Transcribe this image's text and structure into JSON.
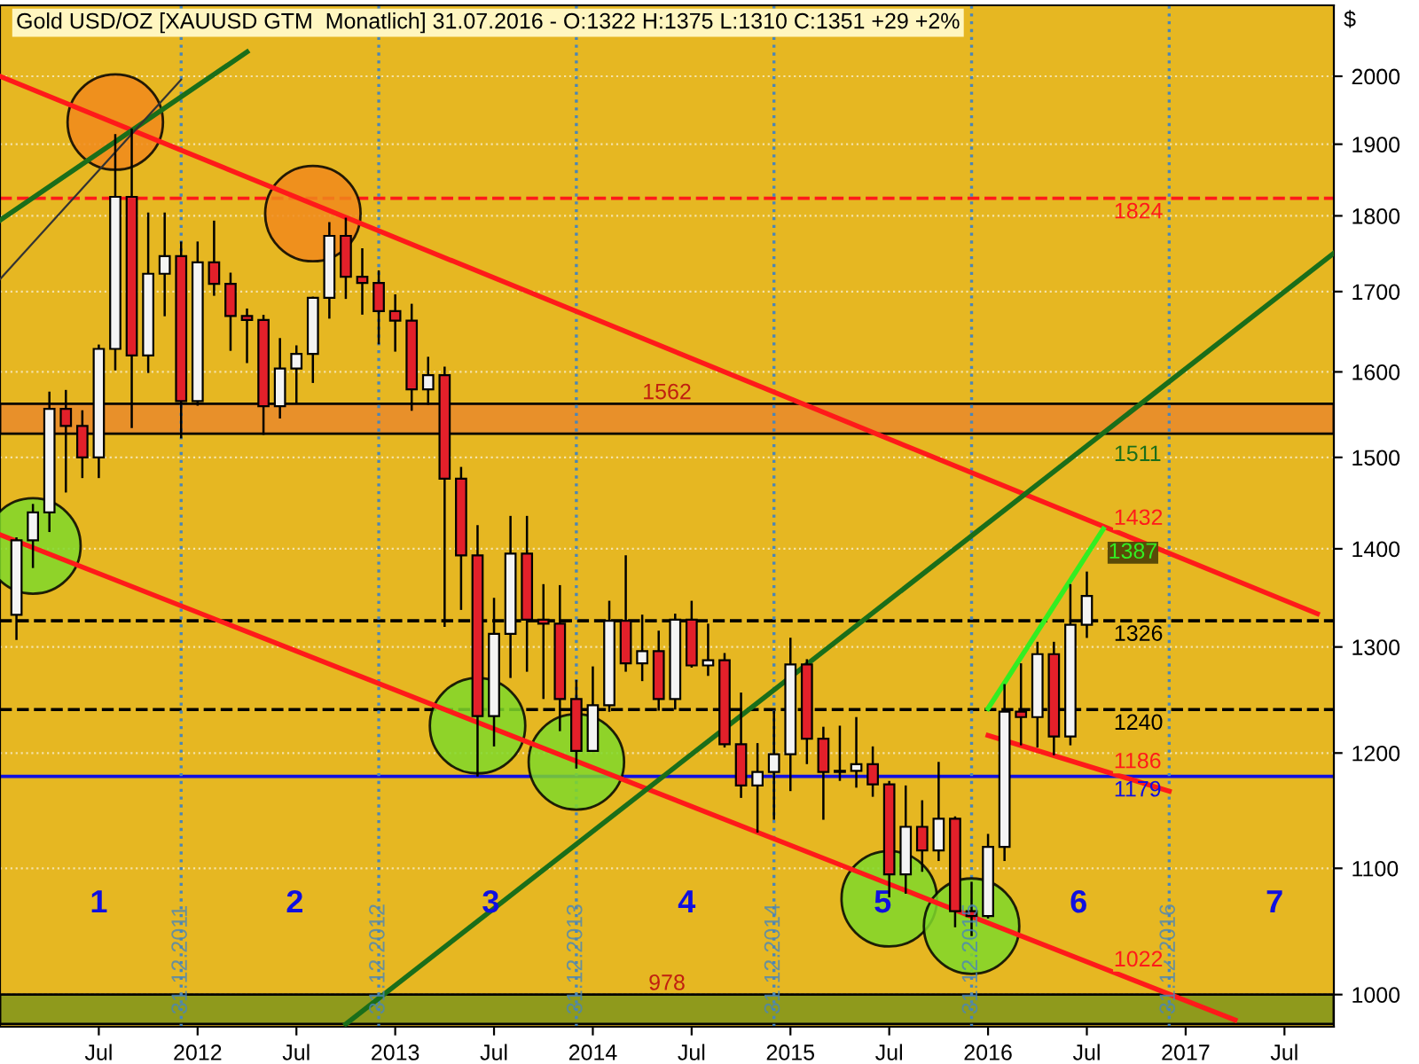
{
  "chart_data": {
    "type": "candlestick",
    "title": "Gold USD/OZ [XAUUSD GTM  Monatlich] 31.07.2016 - O:1322 H:1375 L:1310 C:1351 +29 +2%",
    "ylabel": "$",
    "x": [
      "2011-02",
      "2011-03",
      "2011-04",
      "2011-05",
      "2011-06",
      "2011-07",
      "2011-08",
      "2011-09",
      "2011-10",
      "2011-11",
      "2011-12",
      "2012-01",
      "2012-02",
      "2012-03",
      "2012-04",
      "2012-05",
      "2012-06",
      "2012-07",
      "2012-08",
      "2012-09",
      "2012-10",
      "2012-11",
      "2012-12",
      "2013-01",
      "2013-02",
      "2013-03",
      "2013-04",
      "2013-05",
      "2013-06",
      "2013-07",
      "2013-08",
      "2013-09",
      "2013-10",
      "2013-11",
      "2013-12",
      "2014-01",
      "2014-02",
      "2014-03",
      "2014-04",
      "2014-05",
      "2014-06",
      "2014-07",
      "2014-08",
      "2014-09",
      "2014-10",
      "2014-11",
      "2014-12",
      "2015-01",
      "2015-02",
      "2015-03",
      "2015-04",
      "2015-05",
      "2015-06",
      "2015-07",
      "2015-08",
      "2015-09",
      "2015-10",
      "2015-11",
      "2015-12",
      "2016-01",
      "2016-02",
      "2016-03",
      "2016-04",
      "2016-05",
      "2016-06",
      "2016-07"
    ],
    "ohlc": [
      [
        1332,
        1411,
        1308,
        1409
      ],
      [
        1409,
        1447,
        1381,
        1439
      ],
      [
        1439,
        1575,
        1419,
        1556
      ],
      [
        1556,
        1577,
        1462,
        1536
      ],
      [
        1536,
        1553,
        1478,
        1500
      ],
      [
        1500,
        1632,
        1478,
        1628
      ],
      [
        1628,
        1913,
        1603,
        1826
      ],
      [
        1826,
        1921,
        1535,
        1620
      ],
      [
        1620,
        1803,
        1600,
        1723
      ],
      [
        1723,
        1803,
        1670,
        1746
      ],
      [
        1746,
        1764,
        1523,
        1565
      ],
      [
        1565,
        1764,
        1561,
        1738
      ],
      [
        1738,
        1792,
        1696,
        1710
      ],
      [
        1710,
        1723,
        1627,
        1669
      ],
      [
        1669,
        1677,
        1612,
        1664
      ],
      [
        1664,
        1669,
        1527,
        1559
      ],
      [
        1559,
        1640,
        1546,
        1604
      ],
      [
        1604,
        1631,
        1563,
        1622
      ],
      [
        1622,
        1692,
        1588,
        1692
      ],
      [
        1692,
        1790,
        1667,
        1773
      ],
      [
        1773,
        1796,
        1692,
        1719
      ],
      [
        1719,
        1755,
        1672,
        1711
      ],
      [
        1711,
        1726,
        1635,
        1675
      ],
      [
        1675,
        1695,
        1626,
        1663
      ],
      [
        1663,
        1683,
        1555,
        1579
      ],
      [
        1579,
        1617,
        1562,
        1596
      ],
      [
        1596,
        1605,
        1321,
        1476
      ],
      [
        1476,
        1488,
        1338,
        1393
      ],
      [
        1393,
        1424,
        1180,
        1234
      ],
      [
        1234,
        1348,
        1207,
        1313
      ],
      [
        1313,
        1434,
        1271,
        1395
      ],
      [
        1395,
        1434,
        1277,
        1327
      ],
      [
        1327,
        1362,
        1251,
        1323
      ],
      [
        1323,
        1361,
        1221,
        1250
      ],
      [
        1250,
        1267,
        1187,
        1202
      ],
      [
        1202,
        1280,
        1202,
        1244
      ],
      [
        1244,
        1345,
        1239,
        1326
      ],
      [
        1326,
        1392,
        1277,
        1284
      ],
      [
        1284,
        1331,
        1268,
        1296
      ],
      [
        1296,
        1315,
        1240,
        1250
      ],
      [
        1250,
        1332,
        1241,
        1327
      ],
      [
        1327,
        1345,
        1281,
        1282
      ],
      [
        1282,
        1322,
        1273,
        1287
      ],
      [
        1287,
        1293,
        1206,
        1208
      ],
      [
        1208,
        1255,
        1161,
        1171
      ],
      [
        1171,
        1208,
        1131,
        1183
      ],
      [
        1183,
        1238,
        1142,
        1199
      ],
      [
        1199,
        1308,
        1167,
        1283
      ],
      [
        1283,
        1287,
        1191,
        1213
      ],
      [
        1213,
        1223,
        1142,
        1183
      ],
      [
        1183,
        1224,
        1176,
        1184
      ],
      [
        1184,
        1232,
        1170,
        1190
      ],
      [
        1190,
        1205,
        1162,
        1172
      ],
      [
        1172,
        1174,
        1077,
        1095
      ],
      [
        1095,
        1170,
        1080,
        1135
      ],
      [
        1135,
        1157,
        1098,
        1115
      ],
      [
        1115,
        1191,
        1107,
        1142
      ],
      [
        1142,
        1143,
        1053,
        1065
      ],
      [
        1065,
        1088,
        1046,
        1061
      ],
      [
        1061,
        1128,
        1060,
        1118
      ],
      [
        1118,
        1263,
        1107,
        1238
      ],
      [
        1238,
        1283,
        1208,
        1233
      ],
      [
        1233,
        1304,
        1206,
        1293
      ],
      [
        1293,
        1304,
        1199,
        1215
      ],
      [
        1215,
        1362,
        1208,
        1322
      ],
      [
        1322,
        1375,
        1310,
        1351
      ]
    ],
    "colors": [
      "#f4f4f4",
      "#f4f4f4",
      "#f4f4f4",
      "#e3202a",
      "#e3202a",
      "#f4f4f4",
      "#f4f4f4",
      "#e3202a",
      "#f4f4f4",
      "#f4f4f4",
      "#e3202a",
      "#f4f4f4",
      "#e3202a",
      "#e3202a",
      "#e3202a",
      "#e3202a",
      "#f4f4f4",
      "#f4f4f4",
      "#f4f4f4",
      "#f4f4f4",
      "#e3202a",
      "#e3202a",
      "#e3202a",
      "#e3202a",
      "#e3202a",
      "#f4f4f4",
      "#e3202a",
      "#e3202a",
      "#e3202a",
      "#f4f4f4",
      "#f4f4f4",
      "#e3202a",
      "#e3202a",
      "#e3202a",
      "#e3202a",
      "#f4f4f4",
      "#f4f4f4",
      "#e3202a",
      "#f4f4f4",
      "#e3202a",
      "#f4f4f4",
      "#e3202a",
      "#f4f4f4",
      "#e3202a",
      "#e3202a",
      "#f4f4f4",
      "#f4f4f4",
      "#f4f4f4",
      "#e3202a",
      "#e3202a",
      "#f4f4f4",
      "#f4f4f4",
      "#e3202a",
      "#e3202a",
      "#f4f4f4",
      "#e3202a",
      "#f4f4f4",
      "#e3202a",
      "#e3202a",
      "#f4f4f4",
      "#f4f4f4",
      "#e3202a",
      "#f4f4f4",
      "#e3202a",
      "#f4f4f4",
      "#f4f4f4"
    ],
    "series": [
      {
        "type": "scatter",
        "marker": "circle",
        "color": "#f08a1c",
        "x": [
          "2011-08",
          "2012-08"
        ],
        "values": [
          1932,
          1803
        ]
      },
      {
        "type": "scatter",
        "marker": "circle",
        "color": "#7fd82a",
        "x": [
          "2011-03",
          "2013-06",
          "2013-12",
          "2015-07",
          "2015-12"
        ],
        "values": [
          1403,
          1225,
          1192,
          1075,
          1053
        ]
      },
      {
        "type": "line",
        "name": "1432",
        "color": "#ff1a1a",
        "x": [
          "2011-01",
          "2017-09"
        ],
        "values": [
          2000,
          1333
        ]
      },
      {
        "type": "line",
        "name": "1022",
        "color": "#ff1a1a",
        "x": [
          "2011-01",
          "2017-04"
        ],
        "values": [
          1415,
          981
        ]
      },
      {
        "type": "line",
        "name": "1511",
        "color": "#1a6e1a",
        "x": [
          "2012-10",
          "2017-10"
        ],
        "values": [
          978,
          1750
        ]
      },
      {
        "type": "line",
        "color": "#1a6e1a",
        "x": [
          "2011-01",
          "2012-04"
        ],
        "values": [
          1794,
          2037
        ]
      },
      {
        "type": "line",
        "color": "#333333",
        "x": [
          "2011-01",
          "2011-12"
        ],
        "values": [
          1716,
          1995
        ]
      },
      {
        "type": "line",
        "name": "1186",
        "color": "#ff1a1a",
        "x": [
          "2016-01",
          "2016-12"
        ],
        "values": [
          1216,
          1166
        ]
      },
      {
        "type": "line",
        "name": "1387",
        "color": "#33ee22",
        "x": [
          "2016-01",
          "2016-08"
        ],
        "values": [
          1241,
          1421
        ]
      }
    ],
    "ref_lines": [
      {
        "axis": "y",
        "value": 1824,
        "label": "1824",
        "color": "#ff1a1a",
        "line_style": "dashed"
      },
      {
        "axis": "y",
        "value": 1326,
        "label": "1326",
        "color": "#000000",
        "line_style": "dashed"
      },
      {
        "axis": "y",
        "value": 1240,
        "label": "1240",
        "color": "#000000",
        "line_style": "dashed"
      },
      {
        "axis": "y",
        "value": 1179,
        "label": "1179",
        "color": "#1010e0",
        "line_style": "solid"
      },
      {
        "axis": "x",
        "value": "2011-12",
        "label": "31.12.2011",
        "color": "#4a86b8",
        "line_style": "dotted"
      },
      {
        "axis": "x",
        "value": "2012-12",
        "label": "31.12.2012",
        "color": "#4a86b8",
        "line_style": "dotted"
      },
      {
        "axis": "x",
        "value": "2013-12",
        "label": "31.12.2013",
        "color": "#4a86b8",
        "line_style": "dotted"
      },
      {
        "axis": "x",
        "value": "2014-12",
        "label": "31.12.2014",
        "color": "#4a86b8",
        "line_style": "dotted"
      },
      {
        "axis": "x",
        "value": "2015-12",
        "label": "31.12.2015",
        "color": "#4a86b8",
        "line_style": "dotted"
      },
      {
        "axis": "x",
        "value": "2016-12",
        "label": "31.12.2016",
        "color": "#4a86b8",
        "line_style": "dotted"
      }
    ],
    "bands": [
      {
        "axis": "y",
        "from": 1527,
        "to": 1562,
        "label": "1562",
        "color": "#e8902a"
      },
      {
        "axis": "y",
        "from": 978,
        "to": 1000,
        "label": "978",
        "color": "#8f9a1c"
      }
    ],
    "annotations": [
      "1",
      "2",
      "3",
      "4",
      "5",
      "6",
      "7"
    ],
    "log": true,
    "xlim": [
      "2011-01",
      "2017-10"
    ],
    "xticks": [
      {
        "value": "2011-07",
        "label": "Jul"
      },
      {
        "value": "2012-01",
        "label": "2012"
      },
      {
        "value": "2012-07",
        "label": "Jul"
      },
      {
        "value": "2013-01",
        "label": "2013"
      },
      {
        "value": "2013-07",
        "label": "Jul"
      },
      {
        "value": "2014-01",
        "label": "2014"
      },
      {
        "value": "2014-07",
        "label": "Jul"
      },
      {
        "value": "2015-01",
        "label": "2015"
      },
      {
        "value": "2015-07",
        "label": "Jul"
      },
      {
        "value": "2016-01",
        "label": "2016"
      },
      {
        "value": "2016-07",
        "label": "Jul"
      },
      {
        "value": "2017-01",
        "label": "2017"
      },
      {
        "value": "2017-07",
        "label": "Jul"
      }
    ],
    "ylim": [
      976,
      2110
    ],
    "yticks": [
      1000,
      1100,
      1200,
      1300,
      1400,
      1500,
      1600,
      1700,
      1800,
      1900,
      2000
    ],
    "grid": "y",
    "legend": false
  }
}
